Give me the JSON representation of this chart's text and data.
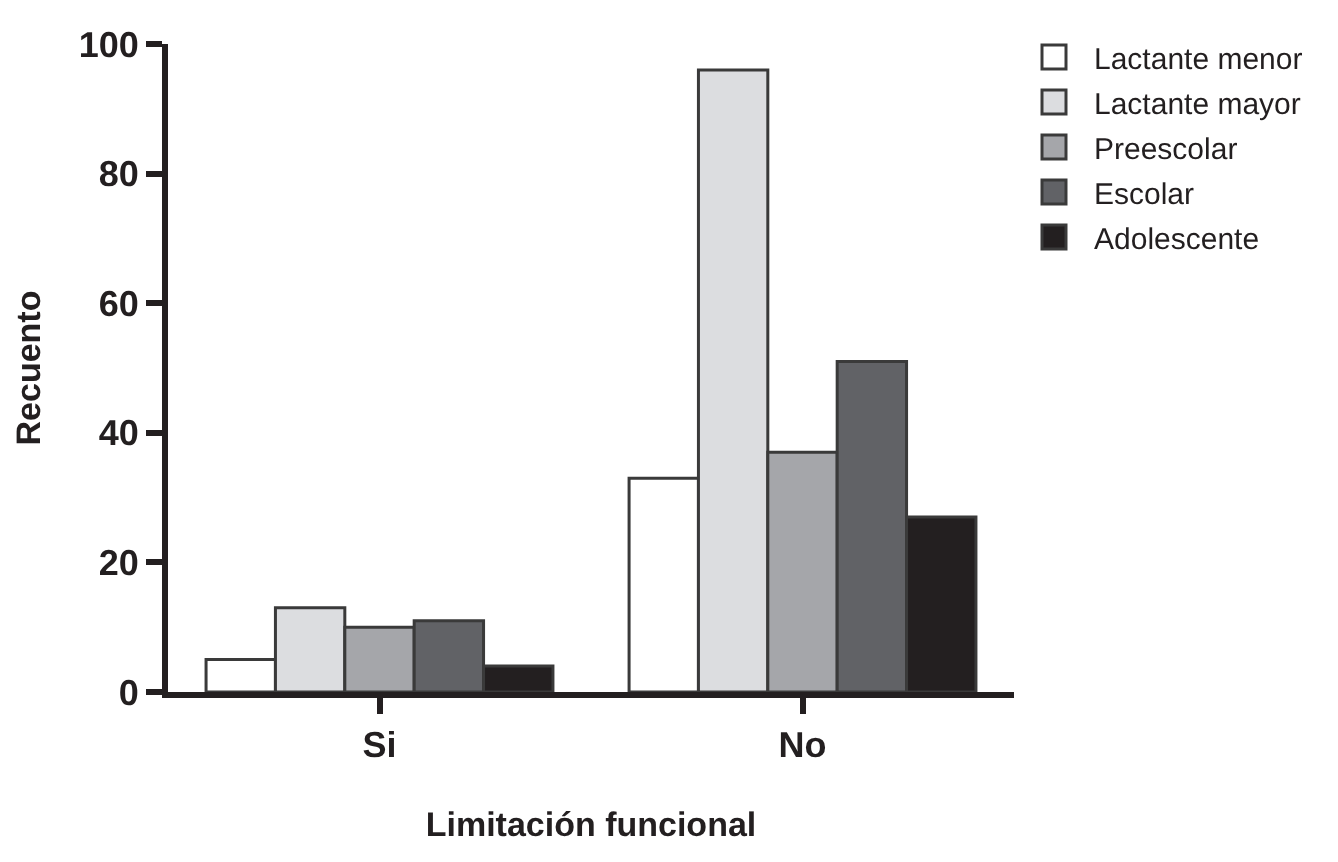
{
  "chart_data": {
    "type": "bar",
    "xlabel": "Limitación funcional",
    "ylabel": "Recuento",
    "categories": [
      "Si",
      "No"
    ],
    "series": [
      {
        "name": "Lactante menor",
        "color": "#ffffff",
        "values": [
          5,
          33
        ]
      },
      {
        "name": "Lactante mayor",
        "color": "#dcdde0",
        "values": [
          13,
          96
        ]
      },
      {
        "name": "Preescolar",
        "color": "#a5a6aa",
        "values": [
          10,
          37
        ]
      },
      {
        "name": "Escolar",
        "color": "#616266",
        "values": [
          11,
          51
        ]
      },
      {
        "name": "Adolescente",
        "color": "#231f20",
        "values": [
          4,
          27
        ]
      }
    ],
    "ylim": [
      0,
      100
    ],
    "yticks": [
      0,
      20,
      40,
      60,
      80,
      100
    ],
    "legend": "top right"
  }
}
